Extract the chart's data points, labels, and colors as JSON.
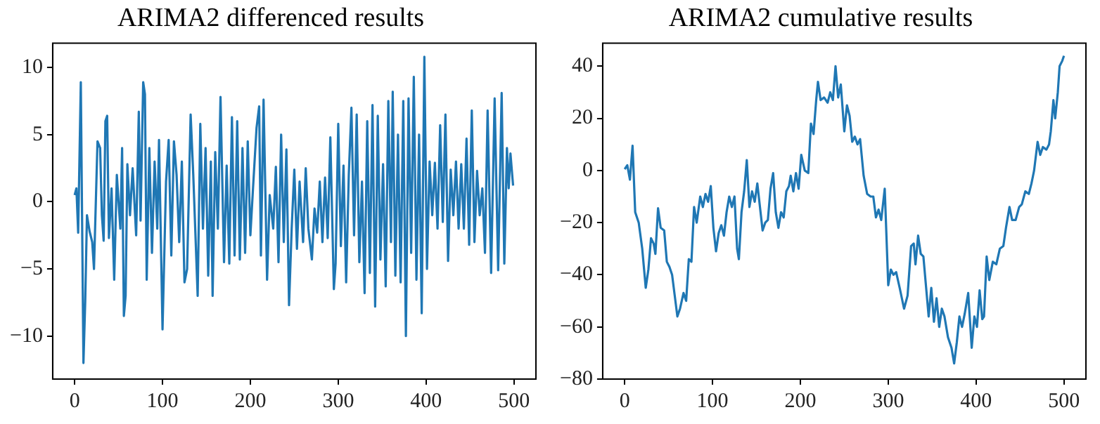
{
  "chart_data": [
    {
      "type": "line",
      "title": "ARIMA2 differenced results",
      "xlim": [
        -25,
        525
      ],
      "ylim": [
        -13.2,
        11.8
      ],
      "xticks": [
        0,
        100,
        200,
        300,
        400,
        500
      ],
      "yticks": [
        -10,
        -5,
        0,
        5,
        10
      ],
      "grid": false,
      "legend": false,
      "series": [
        {
          "color": "#1f77b4",
          "x": [
            0,
            2,
            4,
            7,
            10,
            12,
            14,
            17,
            20,
            22,
            26,
            29,
            31,
            33,
            35,
            37,
            39,
            42,
            45,
            48,
            52,
            54,
            56,
            58,
            60,
            63,
            66,
            70,
            73,
            75,
            78,
            80,
            82,
            85,
            88,
            91,
            94,
            96,
            100,
            104,
            107,
            110,
            113,
            116,
            119,
            122,
            125,
            128,
            132,
            135,
            140,
            143,
            146,
            149,
            152,
            155,
            157,
            160,
            163,
            166,
            170,
            173,
            176,
            179,
            182,
            185,
            188,
            191,
            194,
            197,
            200,
            203,
            207,
            210,
            212,
            215,
            219,
            222,
            226,
            229,
            232,
            235,
            238,
            241,
            244,
            247,
            250,
            253,
            256,
            260,
            263,
            266,
            270,
            273,
            276,
            279,
            282,
            285,
            288,
            291,
            295,
            297,
            300,
            303,
            306,
            309,
            312,
            315,
            318,
            321,
            324,
            327,
            330,
            333,
            336,
            339,
            342,
            345,
            348,
            351,
            354,
            357,
            360,
            362,
            365,
            368,
            371,
            374,
            377,
            380,
            383,
            386,
            389,
            392,
            395,
            398,
            401,
            404,
            407,
            410,
            413,
            416,
            419,
            422,
            425,
            428,
            431,
            434,
            437,
            440,
            443,
            446,
            449,
            452,
            455,
            458,
            461,
            464,
            467,
            470,
            474,
            478,
            482,
            486,
            489,
            492,
            494,
            496,
            499
          ],
          "values": [
            0.5,
            1,
            -2.3,
            8.9,
            -12,
            -7.5,
            -1,
            -2.2,
            -3,
            -5,
            4.5,
            4,
            -1,
            -2.9,
            6,
            6.4,
            -2.7,
            1,
            -5.8,
            2,
            -2,
            4,
            -8.5,
            -7,
            2.8,
            -1,
            2.5,
            -2.5,
            6.7,
            -1.4,
            8.9,
            8,
            -5.8,
            4,
            -3.8,
            3,
            -2,
            4.6,
            -9.5,
            1.5,
            4.6,
            -4,
            4.5,
            2,
            -3,
            3,
            -6,
            -5,
            6.5,
            2,
            -7,
            5.8,
            -2,
            4,
            -5.5,
            3,
            -7,
            3.7,
            -2,
            7.8,
            -4.5,
            2.7,
            -4.6,
            6.3,
            -4,
            6,
            -4.3,
            4,
            -3.8,
            4.5,
            -2.5,
            1,
            5.5,
            7.1,
            -4,
            7.6,
            -5.8,
            0.5,
            -2,
            2.6,
            -4.5,
            5,
            -3,
            3.9,
            -7.7,
            -2,
            2.4,
            -3.5,
            1.5,
            -3,
            2.5,
            -2,
            -4.3,
            -0.5,
            -2.3,
            1.5,
            -3,
            1.8,
            -2.7,
            4.8,
            -6.5,
            -4.6,
            5.8,
            -3.3,
            2.7,
            -6,
            2,
            7,
            -2.5,
            6.5,
            -4.5,
            1.5,
            -6.8,
            6,
            -5.3,
            7.2,
            -7.8,
            6.4,
            -4.3,
            2.8,
            -6.3,
            7.5,
            -3,
            8.2,
            -5.5,
            5,
            -6,
            7.5,
            -10,
            7.7,
            -3.8,
            9.3,
            -5.8,
            5,
            -8.3,
            10.8,
            -5,
            3,
            -1,
            2.9,
            -2,
            5.7,
            -1.5,
            6.5,
            -4.4,
            2.4,
            -1,
            3,
            -2,
            2.8,
            -2,
            4.7,
            -3.2,
            6.8,
            -3,
            2.3,
            -1,
            1,
            -3.8,
            6.8,
            -5.3,
            7.7,
            -5.1,
            8.1,
            -4.6,
            4,
            1,
            3.6,
            1.2
          ]
        }
      ]
    },
    {
      "type": "line",
      "title": "ARIMA2 cumulative results",
      "xlim": [
        -25,
        525
      ],
      "ylim": [
        -80,
        48.8
      ],
      "xticks": [
        0,
        100,
        200,
        300,
        400,
        500
      ],
      "yticks": [
        -80,
        -60,
        -40,
        -20,
        0,
        20,
        40
      ],
      "grid": false,
      "legend": false,
      "series": [
        {
          "color": "#1f77b4",
          "x": [
            0,
            3,
            6,
            9,
            12,
            16,
            20,
            24,
            27,
            30,
            33,
            35,
            38,
            41,
            45,
            48,
            51,
            54,
            57,
            60,
            63,
            67,
            70,
            73,
            76,
            79,
            82,
            86,
            89,
            92,
            95,
            98,
            101,
            104,
            107,
            110,
            113,
            116,
            119,
            122,
            125,
            128,
            130,
            133,
            136,
            139,
            142,
            145,
            148,
            151,
            154,
            157,
            160,
            163,
            166,
            169,
            172,
            175,
            178,
            181,
            184,
            187,
            189,
            192,
            195,
            198,
            201,
            205,
            209,
            212,
            215,
            218,
            220,
            223,
            227,
            231,
            234,
            237,
            240,
            243,
            246,
            250,
            253,
            256,
            259,
            262,
            265,
            268,
            272,
            276,
            280,
            283,
            286,
            289,
            292,
            296,
            300,
            303,
            306,
            309,
            313,
            318,
            322,
            326,
            329,
            331,
            334,
            337,
            340,
            346,
            349,
            352,
            355,
            358,
            361,
            364,
            368,
            372,
            375,
            378,
            381,
            384,
            387,
            391,
            395,
            398,
            401,
            404,
            407,
            409,
            412,
            415,
            419,
            423,
            427,
            431,
            434,
            438,
            441,
            445,
            449,
            452,
            456,
            460,
            463,
            466,
            470,
            473,
            476,
            480,
            483,
            485,
            488,
            490,
            493,
            495,
            498,
            500
          ],
          "values": [
            0.5,
            2,
            -3.5,
            9.5,
            -16,
            -20,
            -30,
            -45,
            -38,
            -26,
            -28,
            -32,
            -14.5,
            -22,
            -23,
            -35,
            -37,
            -40,
            -48,
            -56,
            -53,
            -47,
            -50,
            -34,
            -35,
            -14,
            -20,
            -10,
            -14,
            -9,
            -12,
            -6,
            -22,
            -31,
            -24,
            -21,
            -25,
            -16,
            -10,
            -14,
            -10,
            -30,
            -34,
            -16,
            -8,
            4,
            -14,
            -8,
            -12,
            -5,
            -14,
            -23,
            -20,
            -19,
            -7,
            -1,
            -16,
            -22,
            -16,
            -18,
            -8,
            -6,
            -2,
            -8,
            -1,
            -7,
            6,
            0,
            -1,
            18,
            14,
            27,
            34,
            27,
            28,
            26,
            30,
            27,
            40,
            28,
            33,
            15,
            25,
            21,
            11,
            13,
            10,
            12,
            -2,
            -9,
            -10,
            -10,
            -18,
            -15,
            -19,
            -7,
            -44,
            -38,
            -40,
            -39,
            -45,
            -53,
            -48,
            -29,
            -28,
            -36,
            -25,
            -32,
            -33,
            -56,
            -45,
            -58,
            -49,
            -60,
            -53,
            -56,
            -64,
            -68,
            -74,
            -66,
            -56,
            -60,
            -55,
            -47,
            -68,
            -56,
            -60,
            -46,
            -57,
            -56,
            -33,
            -42,
            -35,
            -36,
            -30,
            -29,
            -22,
            -14,
            -19,
            -19,
            -14,
            -13,
            -8,
            -9,
            -5,
            0,
            11,
            6,
            9,
            8,
            10,
            15,
            27,
            20,
            30,
            40,
            42,
            44
          ]
        }
      ]
    }
  ]
}
